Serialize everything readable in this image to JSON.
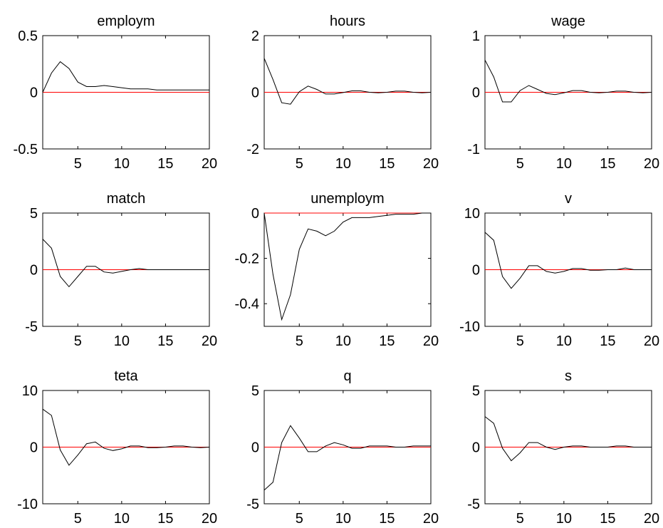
{
  "colors": {
    "series": "#000000",
    "reference": "#ff0000",
    "background": "#ffffff"
  },
  "chart_data": [
    {
      "type": "line",
      "title": "employm",
      "ylim": [
        -0.5,
        0.5
      ],
      "yticks": [
        -0.5,
        0,
        0.5
      ],
      "ytick_labels": [
        "-0.5",
        "0",
        "0.5"
      ],
      "xlim": [
        1,
        20
      ],
      "xticks": [
        5,
        10,
        15,
        20
      ],
      "xtick_labels": [
        "5",
        "10",
        "15",
        "20"
      ],
      "reference_line": 0,
      "x": [
        1,
        2,
        3,
        4,
        5,
        6,
        7,
        8,
        9,
        10,
        11,
        12,
        13,
        14,
        15,
        16,
        17,
        18,
        19,
        20
      ],
      "values": [
        0,
        0.17,
        0.27,
        0.21,
        0.09,
        0.05,
        0.05,
        0.06,
        0.05,
        0.04,
        0.03,
        0.03,
        0.03,
        0.02,
        0.02,
        0.02,
        0.02,
        0.02,
        0.02,
        0.02
      ]
    },
    {
      "type": "line",
      "title": "hours",
      "ylim": [
        -2,
        2
      ],
      "yticks": [
        -2,
        0,
        2
      ],
      "ytick_labels": [
        "-2",
        "0",
        "2"
      ],
      "xlim": [
        1,
        20
      ],
      "xticks": [
        5,
        10,
        15,
        20
      ],
      "xtick_labels": [
        "5",
        "10",
        "15",
        "20"
      ],
      "reference_line": 0,
      "x": [
        1,
        2,
        3,
        4,
        5,
        6,
        7,
        8,
        9,
        10,
        11,
        12,
        13,
        14,
        15,
        16,
        17,
        18,
        19,
        20
      ],
      "values": [
        1.2,
        0.45,
        -0.37,
        -0.42,
        0.02,
        0.22,
        0.1,
        -0.06,
        -0.06,
        -0.01,
        0.05,
        0.05,
        0,
        -0.02,
        0,
        0.04,
        0.04,
        0,
        -0.02,
        0
      ]
    },
    {
      "type": "line",
      "title": "wage",
      "ylim": [
        -1,
        1
      ],
      "yticks": [
        -1,
        0,
        1
      ],
      "ytick_labels": [
        "-1",
        "0",
        "1"
      ],
      "xlim": [
        1,
        20
      ],
      "xticks": [
        5,
        10,
        15,
        20
      ],
      "xtick_labels": [
        "5",
        "10",
        "15",
        "20"
      ],
      "reference_line": 0,
      "x": [
        1,
        2,
        3,
        4,
        5,
        6,
        7,
        8,
        9,
        10,
        11,
        12,
        13,
        14,
        15,
        16,
        17,
        18,
        19,
        20
      ],
      "values": [
        0.57,
        0.27,
        -0.17,
        -0.17,
        0.03,
        0.12,
        0.05,
        -0.02,
        -0.04,
        -0.01,
        0.03,
        0.03,
        0,
        -0.01,
        0,
        0.02,
        0.02,
        0,
        -0.01,
        0
      ]
    },
    {
      "type": "line",
      "title": "match",
      "ylim": [
        -5,
        5
      ],
      "yticks": [
        -5,
        0,
        5
      ],
      "ytick_labels": [
        "-5",
        "0",
        "5"
      ],
      "xlim": [
        1,
        20
      ],
      "xticks": [
        5,
        10,
        15,
        20
      ],
      "xtick_labels": [
        "5",
        "10",
        "15",
        "20"
      ],
      "reference_line": 0,
      "x": [
        1,
        2,
        3,
        4,
        5,
        6,
        7,
        8,
        9,
        10,
        11,
        12,
        13,
        14,
        15,
        16,
        17,
        18,
        19,
        20
      ],
      "values": [
        2.7,
        1.9,
        -0.6,
        -1.5,
        -0.6,
        0.3,
        0.3,
        -0.2,
        -0.3,
        -0.15,
        0,
        0.1,
        0,
        0,
        0,
        0,
        0,
        0,
        0,
        0
      ]
    },
    {
      "type": "line",
      "title": "unemploym",
      "ylim": [
        -0.5,
        0
      ],
      "yticks": [
        -0.4,
        -0.2,
        0
      ],
      "ytick_labels": [
        "-0.4",
        "-0.2",
        "0"
      ],
      "xlim": [
        1,
        20
      ],
      "xticks": [
        5,
        10,
        15,
        20
      ],
      "xtick_labels": [
        "5",
        "10",
        "15",
        "20"
      ],
      "reference_line": 0,
      "x": [
        1,
        2,
        3,
        4,
        5,
        6,
        7,
        8,
        9,
        10,
        11,
        12,
        13,
        14,
        15,
        16,
        17,
        18,
        19,
        20
      ],
      "values": [
        0,
        -0.27,
        -0.47,
        -0.36,
        -0.16,
        -0.07,
        -0.08,
        -0.1,
        -0.08,
        -0.04,
        -0.02,
        -0.02,
        -0.02,
        -0.015,
        -0.01,
        -0.005,
        -0.005,
        -0.005,
        0,
        0
      ]
    },
    {
      "type": "line",
      "title": "v",
      "ylim": [
        -10,
        10
      ],
      "yticks": [
        -10,
        0,
        10
      ],
      "ytick_labels": [
        "-10",
        "0",
        "10"
      ],
      "xlim": [
        1,
        20
      ],
      "xticks": [
        5,
        10,
        15,
        20
      ],
      "xtick_labels": [
        "5",
        "10",
        "15",
        "20"
      ],
      "reference_line": 0,
      "x": [
        1,
        2,
        3,
        4,
        5,
        6,
        7,
        8,
        9,
        10,
        11,
        12,
        13,
        14,
        15,
        16,
        17,
        18,
        19,
        20
      ],
      "values": [
        6.6,
        5.2,
        -1.2,
        -3.3,
        -1.5,
        0.7,
        0.7,
        -0.3,
        -0.6,
        -0.3,
        0.2,
        0.2,
        -0.1,
        -0.1,
        0,
        0,
        0.3,
        0,
        0,
        0
      ]
    },
    {
      "type": "line",
      "title": "teta",
      "ylim": [
        -10,
        10
      ],
      "yticks": [
        -10,
        0,
        10
      ],
      "ytick_labels": [
        "-10",
        "0",
        "10"
      ],
      "xlim": [
        1,
        20
      ],
      "xticks": [
        5,
        10,
        15,
        20
      ],
      "xtick_labels": [
        "5",
        "10",
        "15",
        "20"
      ],
      "reference_line": 0,
      "x": [
        1,
        2,
        3,
        4,
        5,
        6,
        7,
        8,
        9,
        10,
        11,
        12,
        13,
        14,
        15,
        16,
        17,
        18,
        19,
        20
      ],
      "values": [
        6.7,
        5.6,
        -0.5,
        -3.2,
        -1.4,
        0.6,
        0.9,
        -0.2,
        -0.6,
        -0.3,
        0.2,
        0.2,
        -0.1,
        -0.1,
        0,
        0.2,
        0.2,
        0,
        -0.1,
        0
      ]
    },
    {
      "type": "line",
      "title": "q",
      "ylim": [
        -5,
        5
      ],
      "yticks": [
        -5,
        0,
        5
      ],
      "ytick_labels": [
        "-5",
        "0",
        "5"
      ],
      "xlim": [
        1,
        20
      ],
      "xticks": [
        5,
        10,
        15,
        20
      ],
      "xtick_labels": [
        "5",
        "10",
        "15",
        "20"
      ],
      "reference_line": 0,
      "x": [
        1,
        2,
        3,
        4,
        5,
        6,
        7,
        8,
        9,
        10,
        11,
        12,
        13,
        14,
        15,
        16,
        17,
        18,
        19,
        20
      ],
      "values": [
        -3.8,
        -3.1,
        0.4,
        1.9,
        0.8,
        -0.4,
        -0.4,
        0.1,
        0.4,
        0.2,
        -0.1,
        -0.1,
        0.1,
        0.1,
        0.1,
        0,
        0,
        0.1,
        0.1,
        0.1
      ]
    },
    {
      "type": "line",
      "title": "s",
      "ylim": [
        -5,
        5
      ],
      "yticks": [
        -5,
        0,
        5
      ],
      "ytick_labels": [
        "-5",
        "0",
        "5"
      ],
      "xlim": [
        1,
        20
      ],
      "xticks": [
        5,
        10,
        15,
        20
      ],
      "xtick_labels": [
        "5",
        "10",
        "15",
        "20"
      ],
      "reference_line": 0,
      "x": [
        1,
        2,
        3,
        4,
        5,
        6,
        7,
        8,
        9,
        10,
        11,
        12,
        13,
        14,
        15,
        16,
        17,
        18,
        19,
        20
      ],
      "values": [
        2.7,
        2.1,
        -0.1,
        -1.2,
        -0.5,
        0.4,
        0.4,
        0,
        -0.2,
        0,
        0.1,
        0.1,
        0,
        0,
        0,
        0.1,
        0.1,
        0,
        0,
        0
      ]
    }
  ]
}
